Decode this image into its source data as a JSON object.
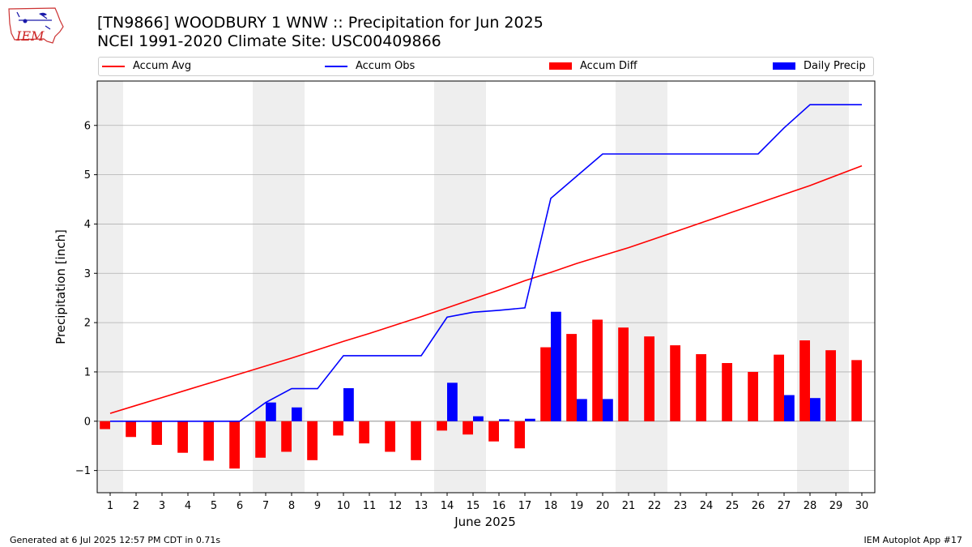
{
  "header": {
    "title_line1": "[TN9866] WOODBURY 1 WNW :: Precipitation for Jun 2025",
    "title_line2": "NCEI 1991-2020 Climate Site: USC00409866",
    "logo_text": "IEM"
  },
  "footer": {
    "generated": "Generated at 6 Jul 2025 12:57 PM CDT in 0.71s",
    "app": "IEM Autoplot App #17"
  },
  "colors": {
    "avg": "#ff0000",
    "obs": "#0000ff",
    "diff": "#ff0000",
    "daily": "#0000ff",
    "weekend": "#eeeeee",
    "grid": "#b0b0b0"
  },
  "chart_data": {
    "type": "bar",
    "xlabel": "June 2025",
    "ylabel": "Precipitation [inch]",
    "ylim": [
      -1.45,
      6.9
    ],
    "yticks": [
      -1,
      0,
      1,
      2,
      3,
      4,
      5,
      6
    ],
    "ytick_labels": [
      "−1",
      "0",
      "1",
      "2",
      "3",
      "4",
      "5",
      "6"
    ],
    "x": [
      1,
      2,
      3,
      4,
      5,
      6,
      7,
      8,
      9,
      10,
      11,
      12,
      13,
      14,
      15,
      16,
      17,
      18,
      19,
      20,
      21,
      22,
      23,
      24,
      25,
      26,
      27,
      28,
      29,
      30
    ],
    "grid": "horizontal",
    "legend_placement": "top",
    "shaded_days": [
      1,
      7,
      8,
      14,
      15,
      21,
      22,
      28,
      29
    ],
    "series": [
      {
        "name": "Accum Avg",
        "kind": "line",
        "values": [
          0.16,
          0.32,
          0.48,
          0.64,
          0.8,
          0.96,
          1.12,
          1.28,
          1.45,
          1.62,
          1.78,
          1.95,
          2.12,
          2.3,
          2.48,
          2.66,
          2.85,
          3.02,
          3.2,
          3.36,
          3.52,
          3.7,
          3.88,
          4.06,
          4.24,
          4.42,
          4.6,
          4.78,
          4.98,
          5.18
        ]
      },
      {
        "name": "Accum Obs",
        "kind": "line",
        "values": [
          0,
          0,
          0,
          0,
          0,
          0,
          0.38,
          0.66,
          0.66,
          1.33,
          1.33,
          1.33,
          1.33,
          2.11,
          2.21,
          2.25,
          2.3,
          4.52,
          4.97,
          5.42,
          5.42,
          5.42,
          5.42,
          5.42,
          5.42,
          5.42,
          5.95,
          6.42,
          6.42,
          6.42
        ]
      },
      {
        "name": "Accum Diff",
        "kind": "bar",
        "values": [
          -0.16,
          -0.32,
          -0.48,
          -0.64,
          -0.8,
          -0.96,
          -0.74,
          -0.62,
          -0.79,
          -0.29,
          -0.45,
          -0.62,
          -0.79,
          -0.19,
          -0.27,
          -0.41,
          -0.55,
          1.5,
          1.77,
          2.06,
          1.9,
          1.72,
          1.54,
          1.36,
          1.18,
          1.0,
          1.35,
          1.64,
          1.44,
          1.24
        ]
      },
      {
        "name": "Daily Precip",
        "kind": "bar",
        "values": [
          0,
          0,
          0,
          0,
          0,
          0,
          0.38,
          0.28,
          0,
          0.67,
          0,
          0,
          0,
          0.78,
          0.1,
          0.04,
          0.05,
          2.22,
          0.45,
          0.45,
          0,
          0,
          0,
          0,
          0,
          0,
          0.53,
          0.47,
          0,
          0
        ]
      }
    ]
  }
}
